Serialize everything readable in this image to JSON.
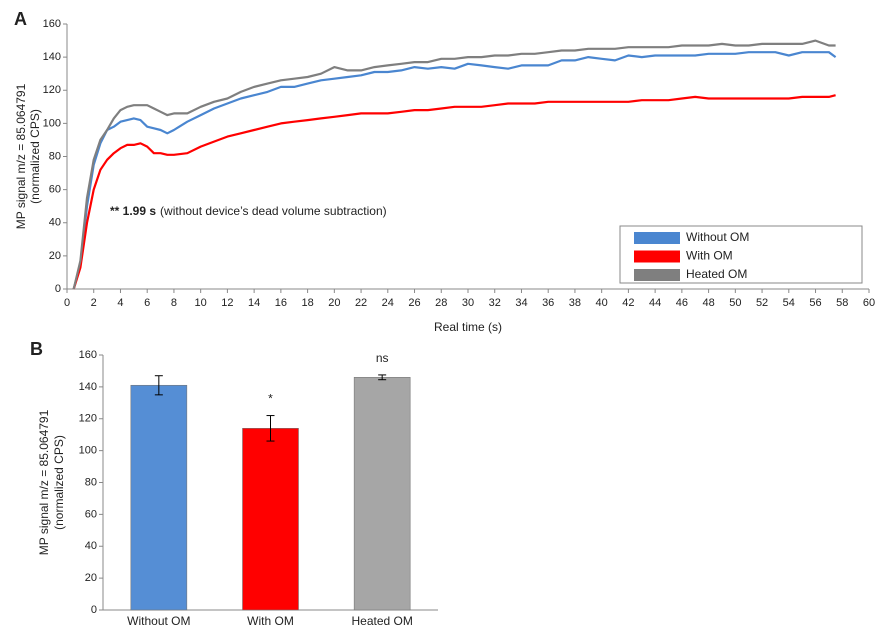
{
  "chart_data": [
    {
      "type": "line",
      "panel_label": "A",
      "ylabel": [
        "MP signal m/z = 85.064791",
        "(normalized CPS)"
      ],
      "xlabel": "Real time (s)",
      "annotation": [
        "** 1.99 s",
        "(without device’s dead volume  subtraction)"
      ],
      "legend": "lower right",
      "xlim": [
        0,
        60
      ],
      "xticks": [
        0,
        2,
        4,
        6,
        8,
        10,
        12,
        14,
        16,
        18,
        20,
        22,
        24,
        26,
        28,
        30,
        32,
        34,
        36,
        38,
        40,
        42,
        44,
        46,
        48,
        50,
        52,
        54,
        56,
        58,
        60
      ],
      "ylim": [
        0,
        160
      ],
      "yticks": [
        0,
        20,
        40,
        60,
        80,
        100,
        120,
        140,
        160
      ],
      "x": [
        0.5,
        1,
        1.5,
        2,
        2.5,
        3,
        3.5,
        4,
        4.5,
        5,
        5.5,
        6,
        6.5,
        7,
        7.5,
        8,
        9,
        10,
        11,
        12,
        13,
        14,
        15,
        16,
        17,
        18,
        19,
        20,
        21,
        22,
        23,
        24,
        25,
        26,
        27,
        28,
        29,
        30,
        31,
        32,
        33,
        34,
        35,
        36,
        37,
        38,
        39,
        40,
        41,
        42,
        43,
        44,
        45,
        46,
        47,
        48,
        49,
        50,
        51,
        52,
        53,
        54,
        55,
        56,
        57,
        57.5
      ],
      "series": [
        {
          "name": "Without OM",
          "color": "#4a86d0",
          "values": [
            0,
            15,
            50,
            75,
            88,
            96,
            98,
            101,
            102,
            103,
            102,
            98,
            97,
            96,
            94,
            96,
            101,
            105,
            109,
            112,
            115,
            117,
            119,
            122,
            122,
            124,
            126,
            127,
            128,
            129,
            131,
            131,
            132,
            134,
            133,
            134,
            133,
            136,
            135,
            134,
            133,
            135,
            135,
            135,
            138,
            138,
            140,
            139,
            138,
            141,
            140,
            141,
            141,
            141,
            141,
            142,
            142,
            142,
            143,
            143,
            143,
            141,
            143,
            143,
            143,
            140
          ]
        },
        {
          "name": "With OM",
          "color": "#ff0000",
          "values": [
            0,
            13,
            40,
            60,
            72,
            78,
            82,
            85,
            87,
            87,
            88,
            86,
            82,
            82,
            81,
            81,
            82,
            86,
            89,
            92,
            94,
            96,
            98,
            100,
            101,
            102,
            103,
            104,
            105,
            106,
            106,
            106,
            107,
            108,
            108,
            109,
            110,
            110,
            110,
            111,
            112,
            112,
            112,
            113,
            113,
            113,
            113,
            113,
            113,
            113,
            114,
            114,
            114,
            115,
            116,
            115,
            115,
            115,
            115,
            115,
            115,
            115,
            116,
            116,
            116,
            117
          ]
        },
        {
          "name": "Heated OM",
          "color": "#7f7f7f",
          "values": [
            0,
            17,
            55,
            78,
            90,
            96,
            103,
            108,
            110,
            111,
            111,
            111,
            109,
            107,
            105,
            106,
            106,
            110,
            113,
            115,
            119,
            122,
            124,
            126,
            127,
            128,
            130,
            134,
            132,
            132,
            134,
            135,
            136,
            137,
            137,
            139,
            139,
            140,
            140,
            141,
            141,
            142,
            142,
            143,
            144,
            144,
            145,
            145,
            145,
            146,
            146,
            146,
            146,
            147,
            147,
            147,
            148,
            147,
            147,
            148,
            148,
            148,
            148,
            150,
            147,
            147
          ]
        }
      ]
    },
    {
      "type": "bar",
      "panel_label": "B",
      "ylabel": [
        "MP signal m/z = 85.064791",
        "(normalized CPS)"
      ],
      "ylim": [
        0,
        160
      ],
      "yticks": [
        0,
        20,
        40,
        60,
        80,
        100,
        120,
        140,
        160
      ],
      "categories": [
        "Without OM",
        "With OM",
        "Heated OM"
      ],
      "values": [
        141,
        114,
        146
      ],
      "errors": [
        6,
        8,
        1.5
      ],
      "significance": [
        null,
        "*",
        "ns"
      ],
      "colors": [
        "#558ed5",
        "#ff0000",
        "#a6a6a6"
      ]
    }
  ]
}
